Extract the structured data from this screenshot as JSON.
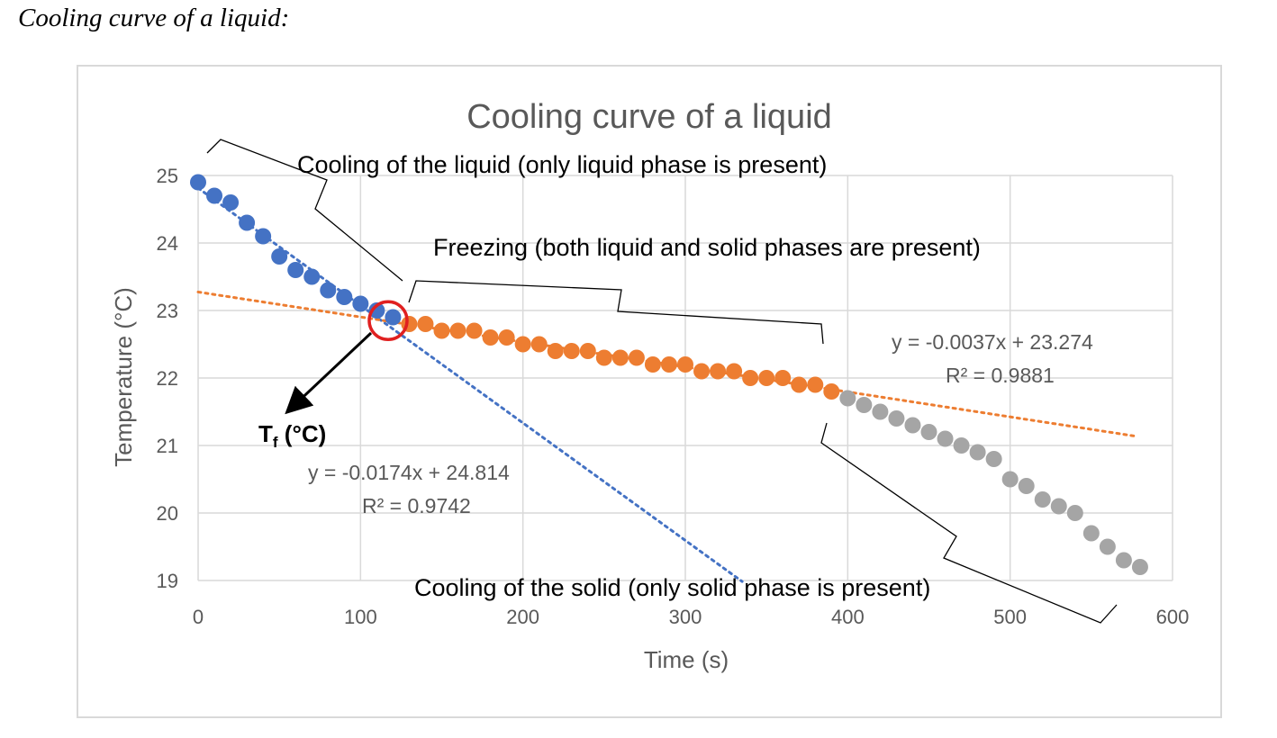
{
  "heading": "Cooling curve of a liquid:",
  "chart_data": {
    "type": "scatter",
    "title": "Cooling curve of a liquid",
    "xlabel": "Time (s)",
    "ylabel": "Temperature (°C)",
    "xlim": [
      0,
      600
    ],
    "ylim": [
      19,
      25
    ],
    "xticks": [
      "0",
      "100",
      "200",
      "300",
      "400",
      "500",
      "600"
    ],
    "yticks": [
      "19",
      "20",
      "21",
      "22",
      "23",
      "24",
      "25"
    ],
    "grid": true,
    "series": [
      {
        "color": "#4472c4",
        "x": [
          0,
          10,
          20,
          30,
          40,
          50,
          60,
          70,
          80,
          90,
          100,
          110,
          120
        ],
        "y": [
          24.9,
          24.7,
          24.6,
          24.3,
          24.1,
          23.8,
          23.6,
          23.5,
          23.3,
          23.2,
          23.1,
          23.0,
          22.9
        ]
      },
      {
        "color": "#ed7d31",
        "x": [
          130,
          140,
          150,
          160,
          170,
          180,
          190,
          200,
          210,
          220,
          230,
          240,
          250,
          260,
          270,
          280,
          290,
          300,
          310,
          320,
          330,
          340,
          350,
          360,
          370,
          380,
          390
        ],
        "y": [
          22.8,
          22.8,
          22.7,
          22.7,
          22.7,
          22.6,
          22.6,
          22.5,
          22.5,
          22.4,
          22.4,
          22.4,
          22.3,
          22.3,
          22.3,
          22.2,
          22.2,
          22.2,
          22.1,
          22.1,
          22.1,
          22.0,
          22.0,
          22.0,
          21.9,
          21.9,
          21.8
        ]
      },
      {
        "color": "#a5a5a5",
        "x": [
          400,
          410,
          420,
          430,
          440,
          450,
          460,
          470,
          480,
          490,
          500,
          510,
          520,
          530,
          540,
          550,
          560,
          570,
          580
        ],
        "y": [
          21.7,
          21.6,
          21.5,
          21.4,
          21.3,
          21.2,
          21.1,
          21.0,
          20.9,
          20.8,
          20.5,
          20.4,
          20.2,
          20.1,
          20.0,
          19.7,
          19.5,
          19.3,
          19.2
        ]
      }
    ],
    "trendlines": [
      {
        "color": "#4472c4",
        "slope": -0.0174,
        "intercept": 24.814,
        "x_range": [
          0,
          335
        ],
        "equation": "y = -0.0174x + 24.814",
        "r2": "R² = 0.9742"
      },
      {
        "color": "#ed7d31",
        "slope": -0.0037,
        "intercept": 23.274,
        "x_range": [
          0,
          577
        ],
        "equation": "y = -0.0037x + 23.274",
        "r2": "R² = 0.9881"
      }
    ],
    "annotations": {
      "liquid": "Cooling of the liquid (only liquid phase is present)",
      "freezing": "Freezing (both liquid and solid phases are present)",
      "solid": "Cooling of the solid (only solid phase is present)",
      "tf": "T",
      "tf_sub": "f",
      "tf_unit": " (°C)",
      "tf_point": {
        "x": 117,
        "y": 22.85
      }
    }
  }
}
